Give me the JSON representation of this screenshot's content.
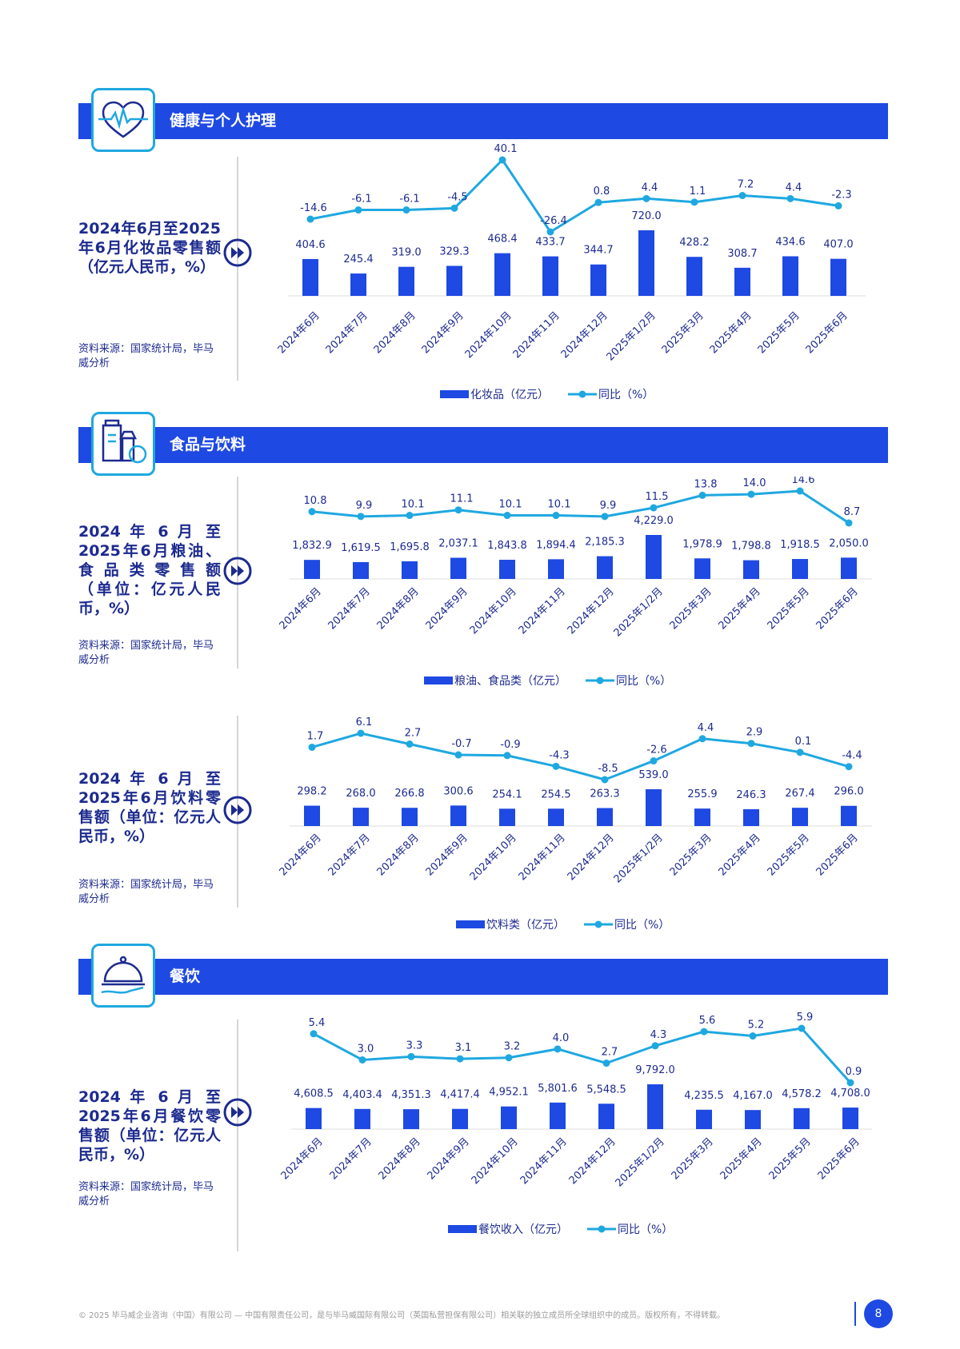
{
  "colors": {
    "band": "#1e49e2",
    "bar": "#1e49e2",
    "line": "#1fa8e0",
    "navy": "#1d2b8f"
  },
  "sections": [
    {
      "title": "健康与个人护理",
      "icon": "heart-pulse-icon"
    },
    {
      "title": "食品与饮料",
      "icon": "food-drink-icon"
    },
    {
      "title": "餐饮",
      "icon": "food-cloche-icon"
    }
  ],
  "panels": [
    {
      "title": "2024年6月至2025年6月化妆品零售额（亿元人民币，%）",
      "source": "资料来源：国家统计局，毕马威分析"
    },
    {
      "title": "2024 年 6 月 至 2025年6月粮油、食 品 类 零 售 额 （单位：亿元人民币，%）",
      "source": "资料来源：国家统计局，毕马威分析"
    },
    {
      "title": "2024 年 6 月 至 2025年6月饮料零售额（单位：亿元人民币，%）",
      "source": "资料来源：国家统计局，毕马威分析"
    },
    {
      "title": "2024 年 6 月 至 2025年6月餐饮零售额（单位：亿元人民币，%）",
      "source": "资料来源：国家统计局，毕马威分析"
    }
  ],
  "chart_data": [
    {
      "type": "bar",
      "categories": [
        "2024年6月",
        "2024年7月",
        "2024年8月",
        "2024年9月",
        "2024年10月",
        "2024年11月",
        "2024年12月",
        "2025年1/2月",
        "2025年3月",
        "2025年4月",
        "2025年5月",
        "2025年6月"
      ],
      "series": [
        {
          "name": "化妆品（亿元）",
          "type": "bar",
          "values": [
            404.6,
            245.4,
            319.0,
            329.3,
            468.4,
            433.7,
            344.7,
            720.0,
            428.2,
            308.7,
            434.6,
            407.0
          ],
          "labels": [
            "404.6",
            "245.4",
            "319.0",
            "329.3",
            "468.4",
            "433.7",
            "344.7",
            "720.0",
            "428.2",
            "308.7",
            "434.6",
            "407.0"
          ]
        },
        {
          "name": "同比（%）",
          "type": "line",
          "values": [
            -14.6,
            -6.1,
            -6.1,
            -4.5,
            40.1,
            -26.4,
            0.8,
            4.4,
            1.1,
            7.2,
            4.4,
            -2.3
          ],
          "labels": [
            "-14.6",
            "-6.1",
            "-6.1",
            "-4.5",
            "40.1",
            "-26.4",
            "0.8",
            "4.4",
            "1.1",
            "7.2",
            "4.4",
            "-2.3"
          ]
        }
      ],
      "grid": false,
      "legend": "bottom"
    },
    {
      "type": "bar",
      "categories": [
        "2024年6月",
        "2024年7月",
        "2024年8月",
        "2024年9月",
        "2024年10月",
        "2024年11月",
        "2024年12月",
        "2025年1/2月",
        "2025年3月",
        "2025年4月",
        "2025年5月",
        "2025年6月"
      ],
      "series": [
        {
          "name": "粮油、食品类（亿元）",
          "type": "bar",
          "values": [
            1832.9,
            1619.5,
            1695.8,
            2037.1,
            1843.8,
            1894.4,
            2185.3,
            4229.0,
            1978.9,
            1798.8,
            1918.5,
            2050.0
          ],
          "labels": [
            "1,832.9",
            "1,619.5",
            "1,695.8",
            "2,037.1",
            "1,843.8",
            "1,894.4",
            "2,185.3",
            "4,229.0",
            "1,978.9",
            "1,798.8",
            "1,918.5",
            "2,050.0"
          ]
        },
        {
          "name": "同比（%）",
          "type": "line",
          "values": [
            10.8,
            9.9,
            10.1,
            11.1,
            10.1,
            10.1,
            9.9,
            11.5,
            13.8,
            14.0,
            14.6,
            8.7
          ],
          "labels": [
            "10.8",
            "9.9",
            "10.1",
            "11.1",
            "10.1",
            "10.1",
            "9.9",
            "11.5",
            "13.8",
            "14.0",
            "14.6",
            "8.7"
          ]
        }
      ],
      "grid": false,
      "legend": "bottom"
    },
    {
      "type": "bar",
      "categories": [
        "2024年6月",
        "2024年7月",
        "2024年8月",
        "2024年9月",
        "2024年10月",
        "2024年11月",
        "2024年12月",
        "2025年1/2月",
        "2025年3月",
        "2025年4月",
        "2025年5月",
        "2025年6月"
      ],
      "series": [
        {
          "name": "饮料类（亿元）",
          "type": "bar",
          "values": [
            298.2,
            268.0,
            266.8,
            300.6,
            254.1,
            254.5,
            263.3,
            539.0,
            255.9,
            246.3,
            267.4,
            296.0
          ],
          "labels": [
            "298.2",
            "268.0",
            "266.8",
            "300.6",
            "254.1",
            "254.5",
            "263.3",
            "539.0",
            "255.9",
            "246.3",
            "267.4",
            "296.0"
          ]
        },
        {
          "name": "同比（%）",
          "type": "line",
          "values": [
            1.7,
            6.1,
            2.7,
            -0.7,
            -0.9,
            -4.3,
            -8.5,
            -2.6,
            4.4,
            2.9,
            0.1,
            -4.4
          ],
          "labels": [
            "1.7",
            "6.1",
            "2.7",
            "-0.7",
            "-0.9",
            "-4.3",
            "-8.5",
            "-2.6",
            "4.4",
            "2.9",
            "0.1",
            "-4.4"
          ]
        }
      ],
      "grid": false,
      "legend": "bottom"
    },
    {
      "type": "bar",
      "categories": [
        "2024年6月",
        "2024年7月",
        "2024年8月",
        "2024年9月",
        "2024年10月",
        "2024年11月",
        "2024年12月",
        "2025年1/2月",
        "2025年3月",
        "2025年4月",
        "2025年5月",
        "2025年6月"
      ],
      "series": [
        {
          "name": "餐饮收入（亿元）",
          "type": "bar",
          "values": [
            4608.5,
            4403.4,
            4351.3,
            4417.4,
            4952.1,
            5801.6,
            5548.5,
            9792.0,
            4235.5,
            4167.0,
            4578.2,
            4708.0
          ],
          "labels": [
            "4,608.5",
            "4,403.4",
            "4,351.3",
            "4,417.4",
            "4,952.1",
            "5,801.6",
            "5,548.5",
            "9,792.0",
            "4,235.5",
            "4,167.0",
            "4,578.2",
            "4,708.0"
          ]
        },
        {
          "name": "同比（%）",
          "type": "line",
          "values": [
            5.4,
            3.0,
            3.3,
            3.1,
            3.2,
            4.0,
            2.7,
            4.3,
            5.6,
            5.2,
            5.9,
            0.9
          ],
          "labels": [
            "5.4",
            "3.0",
            "3.3",
            "3.1",
            "3.2",
            "4.0",
            "2.7",
            "4.3",
            "5.6",
            "5.2",
            "5.9",
            "0.9"
          ]
        }
      ],
      "grid": false,
      "legend": "bottom"
    }
  ],
  "footer": {
    "text": "© 2025 毕马威企业咨询（中国）有限公司 — 中国有限责任公司，是与毕马威国际有限公司（英国私营担保有限公司）相关联的独立成员所全球组织中的成员。版权所有，不得转载。",
    "page": "8"
  }
}
